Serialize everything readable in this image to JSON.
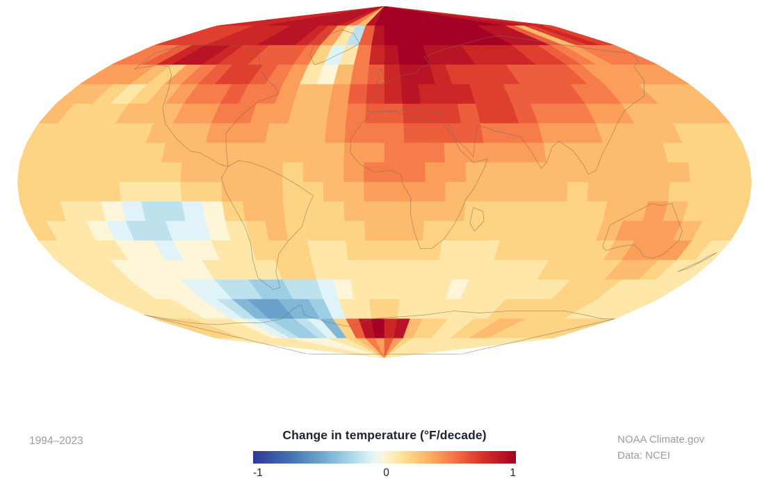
{
  "footer": {
    "period": "1994–2023",
    "credit_line1": "NOAA Climate.gov",
    "credit_line2": "Data: NCEI"
  },
  "legend": {
    "title": "Change in temperature (°F/decade)",
    "ticks": [
      "-1",
      "0",
      "1"
    ]
  },
  "chart_data": {
    "type": "heatmap",
    "projection": "mollweide",
    "title": "Change in temperature (°F/decade)",
    "period": "1994–2023",
    "source": [
      "NOAA Climate.gov",
      "Data: NCEI"
    ],
    "units": "°F/decade",
    "value_range": [
      -1,
      1
    ],
    "colorbar_ticks": [
      -1,
      0,
      1
    ],
    "lat_start": 90,
    "lat_step": -10,
    "lon_start": -180,
    "lon_step": 10,
    "grid_rows": 18,
    "grid_cols": 36,
    "colorbar_stops": [
      [
        -1.0,
        "#313695"
      ],
      [
        -0.7,
        "#4575b4"
      ],
      [
        -0.45,
        "#74add1"
      ],
      [
        -0.25,
        "#abd9e9"
      ],
      [
        -0.1,
        "#e0f3f8"
      ],
      [
        0.0,
        "#fdf5d7"
      ],
      [
        0.15,
        "#fee090"
      ],
      [
        0.35,
        "#fdae61"
      ],
      [
        0.55,
        "#f46d43"
      ],
      [
        0.75,
        "#d73027"
      ],
      [
        1.0,
        "#a50026"
      ]
    ],
    "values": [
      [
        0.8,
        0.8,
        0.8,
        0.8,
        0.8,
        0.9,
        0.9,
        0.9,
        0.9,
        0.9,
        0.9,
        0.9,
        0.9,
        0.8,
        0.5,
        0.3,
        0.9,
        1.0,
        1.0,
        1.0,
        1.0,
        1.0,
        1.0,
        1.0,
        1.0,
        1.0,
        1.0,
        1.0,
        1.0,
        1.0,
        1.0,
        0.9,
        0.9,
        0.9,
        0.8,
        0.8
      ],
      [
        0.7,
        0.7,
        0.7,
        0.7,
        0.8,
        0.8,
        0.8,
        0.8,
        0.9,
        0.9,
        0.9,
        0.8,
        0.7,
        0.4,
        0.1,
        -0.2,
        0.6,
        0.9,
        1.0,
        1.0,
        1.0,
        1.0,
        1.0,
        1.0,
        1.0,
        1.0,
        1.0,
        1.0,
        0.9,
        0.9,
        0.9,
        0.6,
        0.3,
        0.7,
        0.8,
        0.7
      ],
      [
        0.5,
        0.5,
        0.6,
        0.8,
        0.9,
        0.9,
        0.8,
        0.7,
        0.7,
        0.6,
        0.6,
        0.6,
        0.5,
        0.2,
        -0.1,
        0.1,
        0.5,
        0.8,
        0.9,
        1.0,
        1.0,
        0.9,
        0.9,
        0.9,
        0.8,
        0.8,
        0.8,
        0.8,
        0.7,
        0.7,
        0.6,
        0.5,
        0.4,
        0.5,
        0.5,
        0.5
      ],
      [
        0.4,
        0.4,
        0.4,
        0.3,
        0.2,
        0.4,
        0.5,
        0.6,
        0.7,
        0.7,
        0.6,
        0.5,
        0.4,
        0.1,
        0.0,
        0.3,
        0.5,
        0.6,
        0.8,
        0.9,
        0.9,
        0.8,
        0.7,
        0.7,
        0.7,
        0.7,
        0.6,
        0.6,
        0.6,
        0.6,
        0.5,
        0.4,
        0.4,
        0.4,
        0.4,
        0.4
      ],
      [
        0.3,
        0.3,
        0.2,
        0.1,
        0.2,
        0.3,
        0.4,
        0.5,
        0.5,
        0.6,
        0.5,
        0.5,
        0.4,
        0.3,
        0.3,
        0.4,
        0.6,
        0.7,
        0.8,
        0.9,
        0.8,
        0.8,
        0.8,
        0.7,
        0.7,
        0.6,
        0.6,
        0.6,
        0.6,
        0.5,
        0.5,
        0.4,
        0.4,
        0.3,
        0.3,
        0.3
      ],
      [
        0.3,
        0.2,
        0.2,
        0.2,
        0.3,
        0.3,
        0.3,
        0.4,
        0.4,
        0.5,
        0.5,
        0.4,
        0.4,
        0.3,
        0.3,
        0.4,
        0.5,
        0.6,
        0.6,
        0.7,
        0.7,
        0.7,
        0.6,
        0.7,
        0.7,
        0.6,
        0.5,
        0.5,
        0.5,
        0.4,
        0.4,
        0.3,
        0.3,
        0.3,
        0.3,
        0.3
      ],
      [
        0.2,
        0.2,
        0.2,
        0.2,
        0.2,
        0.2,
        0.3,
        0.3,
        0.3,
        0.4,
        0.4,
        0.4,
        0.3,
        0.3,
        0.3,
        0.4,
        0.5,
        0.5,
        0.5,
        0.6,
        0.6,
        0.6,
        0.6,
        0.5,
        0.5,
        0.5,
        0.4,
        0.4,
        0.4,
        0.3,
        0.3,
        0.3,
        0.3,
        0.2,
        0.2,
        0.2
      ],
      [
        0.2,
        0.2,
        0.2,
        0.2,
        0.2,
        0.2,
        0.2,
        0.3,
        0.3,
        0.3,
        0.3,
        0.3,
        0.3,
        0.3,
        0.3,
        0.3,
        0.4,
        0.4,
        0.5,
        0.5,
        0.5,
        0.4,
        0.4,
        0.4,
        0.4,
        0.4,
        0.3,
        0.3,
        0.3,
        0.3,
        0.3,
        0.3,
        0.2,
        0.2,
        0.2,
        0.2
      ],
      [
        0.2,
        0.2,
        0.2,
        0.2,
        0.2,
        0.2,
        0.2,
        0.2,
        0.3,
        0.3,
        0.3,
        0.3,
        0.3,
        0.2,
        0.3,
        0.3,
        0.4,
        0.5,
        0.5,
        0.5,
        0.4,
        0.4,
        0.3,
        0.3,
        0.3,
        0.3,
        0.3,
        0.3,
        0.3,
        0.3,
        0.3,
        0.3,
        0.3,
        0.2,
        0.2,
        0.2
      ],
      [
        0.2,
        0.2,
        0.2,
        0.2,
        0.2,
        0.1,
        0.1,
        0.1,
        0.2,
        0.2,
        0.3,
        0.3,
        0.3,
        0.2,
        0.2,
        0.3,
        0.3,
        0.4,
        0.4,
        0.4,
        0.4,
        0.3,
        0.3,
        0.3,
        0.3,
        0.3,
        0.3,
        0.2,
        0.3,
        0.3,
        0.3,
        0.3,
        0.2,
        0.2,
        0.2,
        0.2
      ],
      [
        0.2,
        0.2,
        0.1,
        0.1,
        0.0,
        -0.1,
        -0.2,
        -0.2,
        -0.1,
        0.0,
        0.2,
        0.3,
        0.3,
        0.2,
        0.2,
        0.2,
        0.3,
        0.3,
        0.3,
        0.3,
        0.3,
        0.3,
        0.2,
        0.2,
        0.2,
        0.2,
        0.2,
        0.2,
        0.2,
        0.3,
        0.3,
        0.4,
        0.3,
        0.2,
        0.2,
        0.2
      ],
      [
        0.2,
        0.1,
        0.1,
        0.0,
        -0.1,
        -0.2,
        -0.2,
        -0.1,
        -0.1,
        0.0,
        0.1,
        0.2,
        0.3,
        0.2,
        0.2,
        0.2,
        0.2,
        0.3,
        0.3,
        0.3,
        0.2,
        0.2,
        0.2,
        0.2,
        0.2,
        0.2,
        0.2,
        0.2,
        0.2,
        0.3,
        0.4,
        0.4,
        0.4,
        0.3,
        0.2,
        0.2
      ],
      [
        0.1,
        0.1,
        0.1,
        0.1,
        0.0,
        0.0,
        -0.1,
        0.0,
        0.0,
        0.1,
        0.1,
        0.2,
        0.2,
        0.2,
        0.1,
        0.1,
        0.2,
        0.2,
        0.2,
        0.2,
        0.2,
        0.1,
        0.1,
        0.1,
        0.2,
        0.2,
        0.2,
        0.2,
        0.2,
        0.2,
        0.3,
        0.4,
        0.4,
        0.4,
        0.2,
        0.1
      ],
      [
        0.1,
        0.1,
        0.1,
        0.0,
        0.0,
        0.0,
        0.0,
        0.0,
        0.1,
        0.1,
        0.1,
        0.1,
        0.2,
        0.2,
        0.1,
        0.1,
        0.1,
        0.1,
        0.1,
        0.1,
        0.1,
        0.1,
        0.1,
        0.1,
        0.1,
        0.1,
        0.1,
        0.2,
        0.2,
        0.2,
        0.2,
        0.3,
        0.3,
        0.2,
        0.1,
        0.1
      ],
      [
        0.1,
        0.1,
        0.1,
        0.0,
        0.0,
        0.0,
        -0.1,
        -0.1,
        -0.2,
        -0.2,
        -0.3,
        -0.3,
        -0.2,
        -0.2,
        -0.1,
        0.0,
        0.1,
        0.1,
        0.1,
        0.1,
        0.1,
        0.1,
        0.0,
        0.1,
        0.1,
        0.1,
        0.1,
        0.1,
        0.1,
        0.2,
        0.2,
        0.2,
        0.1,
        0.1,
        0.1,
        0.1
      ],
      [
        0.1,
        0.1,
        0.1,
        0.1,
        0.0,
        0.0,
        -0.1,
        -0.2,
        -0.4,
        -0.5,
        -0.5,
        -0.4,
        -0.4,
        -0.3,
        -0.1,
        0.1,
        0.1,
        0.2,
        0.2,
        0.1,
        0.1,
        0.1,
        0.1,
        0.1,
        0.1,
        0.1,
        0.2,
        0.2,
        0.2,
        0.2,
        0.2,
        0.2,
        0.1,
        0.1,
        0.1,
        0.1
      ],
      [
        0.2,
        0.2,
        0.2,
        0.1,
        0.1,
        0.1,
        0.0,
        -0.1,
        -0.2,
        -0.3,
        -0.3,
        -0.2,
        -0.1,
        -0.4,
        0.2,
        0.6,
        0.9,
        1.0,
        0.8,
        0.9,
        0.3,
        0.2,
        0.2,
        0.1,
        0.1,
        0.2,
        0.2,
        0.3,
        0.3,
        0.2,
        0.2,
        0.2,
        0.2,
        0.2,
        0.2,
        0.2
      ],
      [
        0.1,
        0.1,
        0.1,
        0.1,
        0.1,
        0.1,
        0.1,
        0.1,
        0.0,
        0.0,
        0.0,
        0.0,
        0.1,
        0.1,
        0.2,
        0.3,
        0.5,
        0.4,
        0.6,
        0.4,
        0.2,
        0.1,
        0.1,
        0.1,
        0.1,
        0.1,
        0.1,
        0.1,
        0.1,
        0.1,
        0.1,
        0.1,
        0.1,
        0.1,
        0.1,
        0.1
      ]
    ]
  }
}
